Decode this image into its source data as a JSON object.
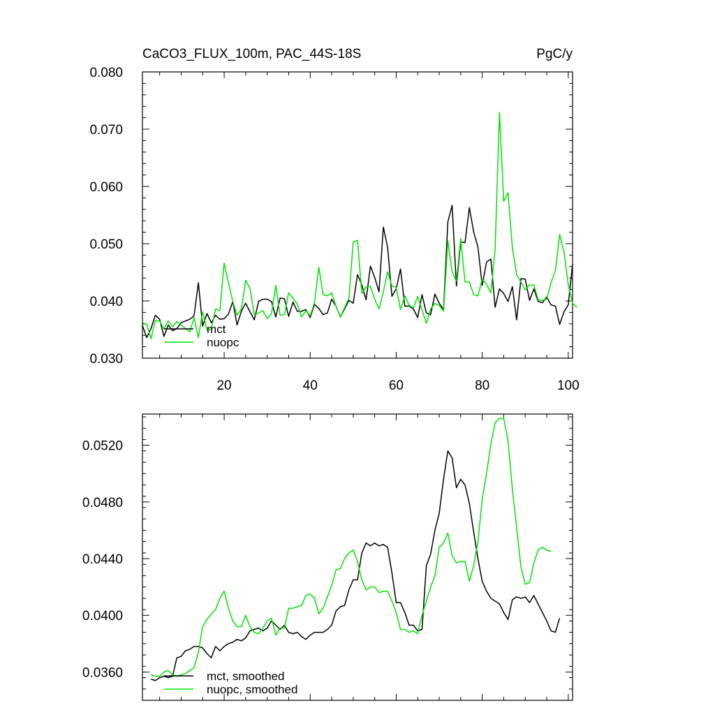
{
  "chart_data": [
    {
      "type": "line",
      "title": "CaCO3_FLUX_100m, PAC_44S-18S",
      "units": "PgC/y",
      "xlim": [
        1,
        101
      ],
      "ylim": [
        0.03,
        0.08
      ],
      "xticks": [
        20,
        40,
        60,
        80,
        100
      ],
      "yticks": [
        0.03,
        0.04,
        0.05,
        0.06,
        0.07,
        0.08
      ],
      "ytick_labels": [
        "0.030",
        "0.040",
        "0.050",
        "0.060",
        "0.070",
        "0.080"
      ],
      "xtick_labels": [
        "20",
        "40",
        "60",
        "80",
        "100"
      ],
      "legend_position": "bottom-left",
      "series": [
        {
          "name": "mct",
          "color": "#000000",
          "x_start": 1,
          "values": [
            0.0357,
            0.0336,
            0.0352,
            0.0375,
            0.0368,
            0.0338,
            0.0358,
            0.0348,
            0.0352,
            0.0362,
            0.0365,
            0.0368,
            0.0374,
            0.0432,
            0.0356,
            0.0378,
            0.0362,
            0.0375,
            0.0368,
            0.0369,
            0.0377,
            0.0399,
            0.0358,
            0.0382,
            0.0396,
            0.0381,
            0.0367,
            0.0399,
            0.0403,
            0.0403,
            0.0399,
            0.0372,
            0.0405,
            0.0404,
            0.0373,
            0.0398,
            0.0382,
            0.0382,
            0.0385,
            0.0371,
            0.0394,
            0.0387,
            0.0376,
            0.0379,
            0.0403,
            0.0391,
            0.0372,
            0.0386,
            0.0401,
            0.0396,
            0.0446,
            0.0428,
            0.0402,
            0.0461,
            0.0441,
            0.0416,
            0.0529,
            0.0494,
            0.0408,
            0.0421,
            0.0456,
            0.0391,
            0.0391,
            0.0386,
            0.0371,
            0.0411,
            0.0379,
            0.0376,
            0.0412,
            0.0396,
            0.0385,
            0.0538,
            0.0567,
            0.0426,
            0.0503,
            0.0502,
            0.0563,
            0.0521,
            0.0494,
            0.0427,
            0.0468,
            0.0473,
            0.0389,
            0.0421,
            0.0413,
            0.0399,
            0.0425,
            0.0367,
            0.0439,
            0.0438,
            0.0401,
            0.0421,
            0.0399,
            0.0397,
            0.0407,
            0.0393,
            0.0391,
            0.0359,
            0.0381,
            0.0393,
            0.0464
          ]
        },
        {
          "name": "nuopc",
          "color": "#00e400",
          "x_start": 1,
          "values": [
            0.0362,
            0.0359,
            0.0334,
            0.0366,
            0.0365,
            0.0351,
            0.0365,
            0.0355,
            0.0364,
            0.0358,
            0.0352,
            0.0346,
            0.0371,
            0.0336,
            0.0381,
            0.0349,
            0.0351,
            0.0386,
            0.0383,
            0.0466,
            0.0431,
            0.0399,
            0.0375,
            0.0386,
            0.0436,
            0.0422,
            0.0375,
            0.0379,
            0.0383,
            0.0369,
            0.0378,
            0.0427,
            0.0375,
            0.0376,
            0.0414,
            0.0405,
            0.0394,
            0.0372,
            0.0383,
            0.0374,
            0.0397,
            0.0459,
            0.0411,
            0.0409,
            0.0414,
            0.0391,
            0.0372,
            0.0388,
            0.0405,
            0.0503,
            0.0506,
            0.0413,
            0.0425,
            0.0425,
            0.0403,
            0.0386,
            0.0416,
            0.0451,
            0.0426,
            0.0424,
            0.0385,
            0.0409,
            0.0392,
            0.0388,
            0.0408,
            0.0384,
            0.0361,
            0.0386,
            0.0396,
            0.0392,
            0.0382,
            0.0505,
            0.0451,
            0.0434,
            0.0509,
            0.0433,
            0.0433,
            0.0411,
            0.0409,
            0.0438,
            0.0429,
            0.0414,
            0.0491,
            0.0729,
            0.0574,
            0.0589,
            0.0493,
            0.0446,
            0.0433,
            0.0419,
            0.0428,
            0.0428,
            0.0402,
            0.0401,
            0.0403,
            0.0432,
            0.0453,
            0.0516,
            0.0486,
            0.0429,
            0.0396,
            0.0389
          ]
        }
      ]
    },
    {
      "type": "line",
      "title": "",
      "xlim": [
        1,
        101
      ],
      "ylim": [
        0.034,
        0.0542
      ],
      "xticks": [
        20,
        40,
        60,
        80,
        100
      ],
      "yticks": [
        0.036,
        0.04,
        0.044,
        0.048,
        0.052
      ],
      "ytick_labels": [
        "0.0360",
        "0.0400",
        "0.0440",
        "0.0480",
        "0.0520"
      ],
      "legend_position": "bottom-left",
      "series": [
        {
          "name": "mct, smoothed",
          "color": "#000000",
          "x_start": 3,
          "values": [
            0.0355,
            0.0354,
            0.0356,
            0.0357,
            0.0356,
            0.0357,
            0.037,
            0.0371,
            0.0375,
            0.0376,
            0.0378,
            0.0378,
            0.0377,
            0.0373,
            0.037,
            0.0378,
            0.0375,
            0.0378,
            0.038,
            0.0381,
            0.0383,
            0.0382,
            0.0384,
            0.0389,
            0.039,
            0.0391,
            0.0389,
            0.0391,
            0.0396,
            0.0393,
            0.039,
            0.0393,
            0.0388,
            0.0387,
            0.0388,
            0.0385,
            0.0383,
            0.0386,
            0.0388,
            0.0388,
            0.0388,
            0.039,
            0.0393,
            0.0403,
            0.0406,
            0.0407,
            0.0418,
            0.0425,
            0.0425,
            0.0444,
            0.0451,
            0.0449,
            0.0451,
            0.0449,
            0.045,
            0.0448,
            0.043,
            0.0409,
            0.0409,
            0.0402,
            0.0393,
            0.0393,
            0.0389,
            0.039,
            0.0435,
            0.0443,
            0.046,
            0.0472,
            0.0496,
            0.0516,
            0.0511,
            0.049,
            0.0496,
            0.0492,
            0.0479,
            0.0459,
            0.044,
            0.0424,
            0.0417,
            0.0412,
            0.041,
            0.0408,
            0.0402,
            0.0397,
            0.0411,
            0.0413,
            0.0412,
            0.0413,
            0.0409,
            0.0414,
            0.0408,
            0.0402,
            0.0396,
            0.0389,
            0.0388,
            0.0398
          ]
        },
        {
          "name": "nuopc, smoothed",
          "color": "#00e400",
          "x_start": 3,
          "values": [
            0.0358,
            0.0357,
            0.0357,
            0.036,
            0.0361,
            0.0358,
            0.0357,
            0.0358,
            0.0359,
            0.0361,
            0.0363,
            0.0374,
            0.0392,
            0.0397,
            0.0401,
            0.0404,
            0.0412,
            0.0417,
            0.0405,
            0.0396,
            0.0392,
            0.0392,
            0.04,
            0.0392,
            0.0388,
            0.0387,
            0.0391,
            0.0396,
            0.0398,
            0.0386,
            0.0391,
            0.0391,
            0.0405,
            0.0405,
            0.0406,
            0.0407,
            0.0414,
            0.0415,
            0.0412,
            0.0401,
            0.0405,
            0.0413,
            0.0421,
            0.0432,
            0.0433,
            0.044,
            0.0444,
            0.0446,
            0.0438,
            0.0425,
            0.0418,
            0.042,
            0.042,
            0.0416,
            0.0417,
            0.0417,
            0.041,
            0.0402,
            0.039,
            0.039,
            0.0388,
            0.0389,
            0.0387,
            0.04,
            0.041,
            0.042,
            0.0428,
            0.0448,
            0.0451,
            0.0458,
            0.0442,
            0.0437,
            0.0438,
            0.0438,
            0.0424,
            0.0435,
            0.0452,
            0.0482,
            0.05,
            0.0521,
            0.0536,
            0.0539,
            0.0539,
            0.0523,
            0.0489,
            0.0462,
            0.0434,
            0.0422,
            0.0423,
            0.0437,
            0.0446,
            0.0448,
            0.0446,
            0.0445
          ]
        }
      ]
    }
  ]
}
